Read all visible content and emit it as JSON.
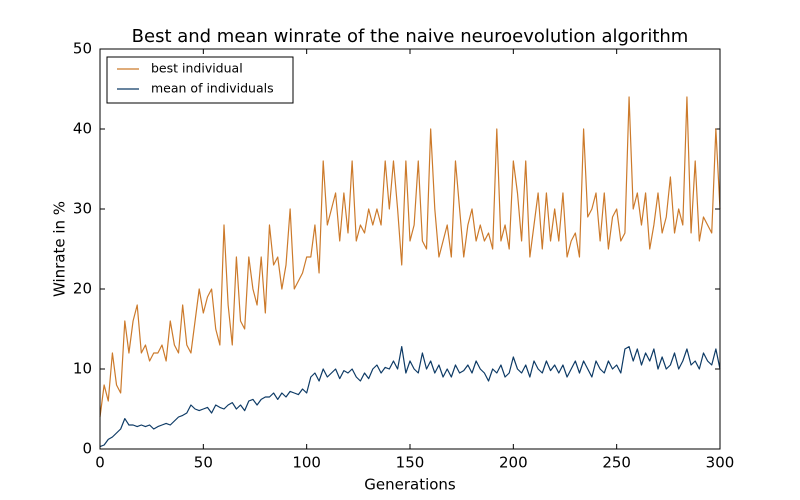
{
  "chart_data": {
    "type": "line",
    "title": "Best and mean winrate of the naive neuroevolution algorithm",
    "xlabel": "Generations",
    "ylabel": "Winrate in %",
    "x": [
      0,
      2,
      4,
      6,
      8,
      10,
      12,
      14,
      16,
      18,
      20,
      22,
      24,
      26,
      28,
      30,
      32,
      34,
      36,
      38,
      40,
      42,
      44,
      46,
      48,
      50,
      52,
      54,
      56,
      58,
      60,
      62,
      64,
      66,
      68,
      70,
      72,
      74,
      76,
      78,
      80,
      82,
      84,
      86,
      88,
      90,
      92,
      94,
      96,
      98,
      100,
      102,
      104,
      106,
      108,
      110,
      112,
      114,
      116,
      118,
      120,
      122,
      124,
      126,
      128,
      130,
      132,
      134,
      136,
      138,
      140,
      142,
      144,
      146,
      148,
      150,
      152,
      154,
      156,
      158,
      160,
      162,
      164,
      166,
      168,
      170,
      172,
      174,
      176,
      178,
      180,
      182,
      184,
      186,
      188,
      190,
      192,
      194,
      196,
      198,
      200,
      202,
      204,
      206,
      208,
      210,
      212,
      214,
      216,
      218,
      220,
      222,
      224,
      226,
      228,
      230,
      232,
      234,
      236,
      238,
      240,
      242,
      244,
      246,
      248,
      250,
      252,
      254,
      256,
      258,
      260,
      262,
      264,
      266,
      268,
      270,
      272,
      274,
      276,
      278,
      280,
      282,
      284,
      286,
      288,
      290,
      292,
      294,
      296,
      298,
      300
    ],
    "series": [
      {
        "name": "best individual",
        "color": "#cc7a2b",
        "values": [
          4,
          8,
          6,
          12,
          8,
          7,
          16,
          12,
          16,
          18,
          12,
          13,
          11,
          12,
          12,
          13,
          11,
          16,
          13,
          12,
          18,
          13,
          12,
          16,
          20,
          17,
          19,
          20,
          15,
          13,
          28,
          18,
          13,
          24,
          16,
          15,
          24,
          20,
          18,
          24,
          17,
          28,
          23,
          24,
          20,
          23,
          30,
          20,
          21,
          22,
          24,
          24,
          28,
          22,
          36,
          28,
          30,
          32,
          26,
          32,
          27,
          36,
          26,
          28,
          27,
          30,
          28,
          30,
          28,
          36,
          30,
          36,
          30,
          23,
          36,
          26,
          28,
          36,
          26,
          25,
          40,
          30,
          24,
          26,
          28,
          24,
          36,
          30,
          24,
          28,
          30,
          26,
          28,
          26,
          27,
          25,
          40,
          26,
          28,
          25,
          36,
          32,
          26,
          36,
          24,
          28,
          32,
          25,
          32,
          26,
          30,
          26,
          32,
          24,
          26,
          27,
          24,
          40,
          29,
          30,
          32,
          26,
          32,
          25,
          29,
          30,
          26,
          27,
          44,
          30,
          32,
          28,
          32,
          25,
          28,
          32,
          27,
          29,
          34,
          27,
          30,
          28,
          44,
          27,
          36,
          26,
          29,
          28,
          27,
          40,
          30
        ]
      },
      {
        "name": "mean of individuals",
        "color": "#0e3b66",
        "values": [
          0.3,
          0.5,
          1.2,
          1.5,
          2,
          2.5,
          3.8,
          3,
          3,
          2.8,
          3,
          2.8,
          3,
          2.5,
          2.8,
          3,
          3.2,
          3,
          3.5,
          4,
          4.2,
          4.5,
          5.5,
          5,
          4.8,
          5,
          5.2,
          4.5,
          5.5,
          5.2,
          5,
          5.5,
          5.8,
          5,
          5.5,
          4.8,
          6,
          6.2,
          5.5,
          6.2,
          6.5,
          6.5,
          7,
          6.2,
          7,
          6.5,
          7.2,
          7,
          6.8,
          7.5,
          7,
          9,
          9.5,
          8.5,
          10,
          9,
          9.5,
          10,
          8.8,
          9.8,
          9.5,
          10,
          9,
          8.5,
          9.5,
          8.8,
          10,
          10.5,
          9.5,
          10.2,
          10,
          11,
          10,
          12.8,
          9.5,
          11,
          10,
          9.5,
          12,
          10,
          11,
          9.5,
          10.5,
          9,
          10,
          9,
          10.5,
          9.5,
          9.8,
          10.5,
          9.5,
          11,
          10,
          9.5,
          8.5,
          10,
          9.5,
          10.5,
          9,
          9.5,
          11.5,
          10,
          9.5,
          10.5,
          9,
          11,
          10,
          9.5,
          11,
          9.8,
          10.5,
          9.5,
          10.5,
          9,
          10,
          11,
          9.5,
          11,
          10,
          9,
          11,
          10,
          9.5,
          11,
          10,
          10.5,
          9.5,
          12.5,
          12.8,
          11,
          12.5,
          10.5,
          12,
          11,
          12.5,
          10,
          11.5,
          10,
          10.5,
          12,
          10,
          11,
          12.5,
          10.5,
          11,
          10,
          12,
          11,
          10.5,
          12.5,
          10
        ]
      }
    ],
    "xlim": [
      0,
      300
    ],
    "xticks": [
      0,
      50,
      100,
      150,
      200,
      250,
      300
    ],
    "ylim": [
      0,
      50
    ],
    "yticks": [
      0,
      10,
      20,
      30,
      40,
      50
    ],
    "legend": "upper left"
  }
}
